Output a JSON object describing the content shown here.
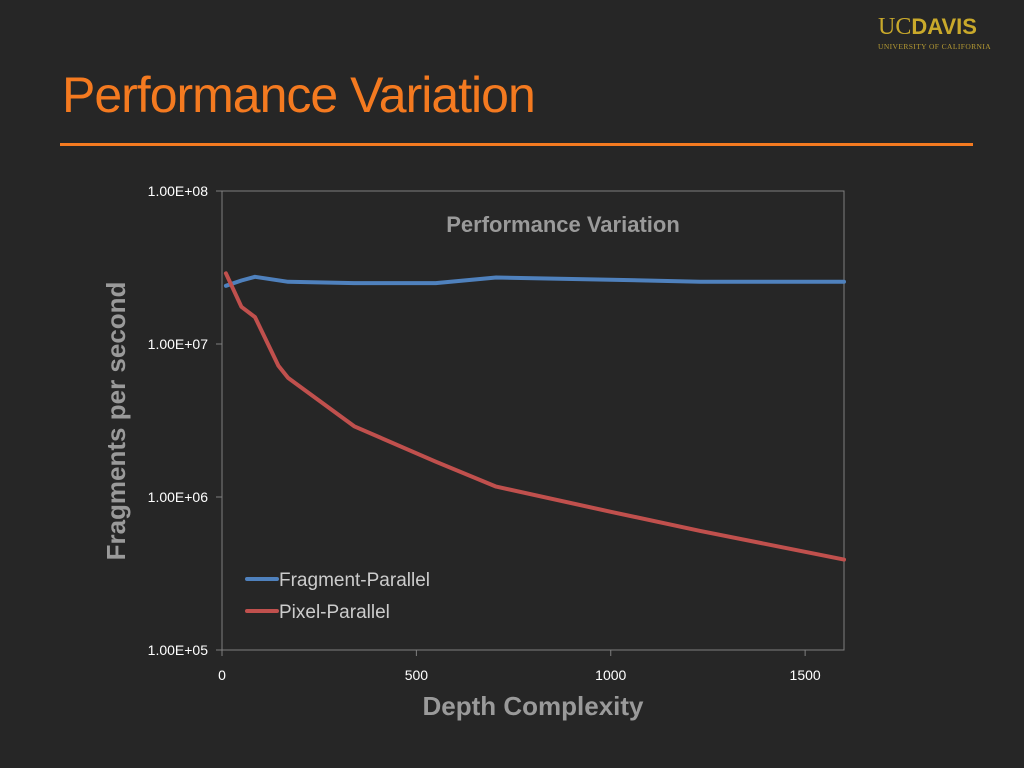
{
  "slide": {
    "title": "Performance Variation",
    "logo": {
      "uc": "UC",
      "davis": "DAVIS",
      "subtitle": "UNIVERSITY OF CALIFORNIA"
    },
    "colors": {
      "background": "#262626",
      "title": "#f47a20",
      "rule": "#f47a20",
      "logo": "#c9a92b"
    }
  },
  "chart_data": {
    "type": "line",
    "title": "Performance Variation",
    "xlabel": "Depth Complexity",
    "ylabel": "Fragments per second",
    "xlim": [
      0,
      1600
    ],
    "ylim": [
      100000,
      100000000
    ],
    "yscale": "log",
    "x_ticks": [
      0,
      500,
      1000,
      1500
    ],
    "x_tick_labels": [
      "0",
      "500",
      "1000",
      "1500"
    ],
    "y_ticks": [
      100000,
      1000000,
      10000000,
      100000000
    ],
    "y_tick_labels": [
      "1.00E+05",
      "1.00E+06",
      "1.00E+07",
      "1.00E+08"
    ],
    "grid": false,
    "legend_position": "bottom-left",
    "series": [
      {
        "name": "Fragment-Parallel",
        "color": "#4f81bd",
        "x": [
          10,
          50,
          85,
          170,
          340,
          550,
          705,
          1000,
          1230,
          1600
        ],
        "y": [
          24000000,
          26000000,
          27500000,
          25500000,
          25000000,
          25000000,
          27200000,
          26300000,
          25500000,
          25500000
        ]
      },
      {
        "name": "Pixel-Parallel",
        "color": "#c0504d",
        "x": [
          10,
          50,
          85,
          145,
          170,
          340,
          550,
          705,
          1000,
          1230,
          1600
        ],
        "y": [
          29000000,
          17500000,
          15000000,
          7200000,
          6000000,
          2900000,
          1700000,
          1170000,
          800000,
          600000,
          390000
        ]
      }
    ]
  }
}
